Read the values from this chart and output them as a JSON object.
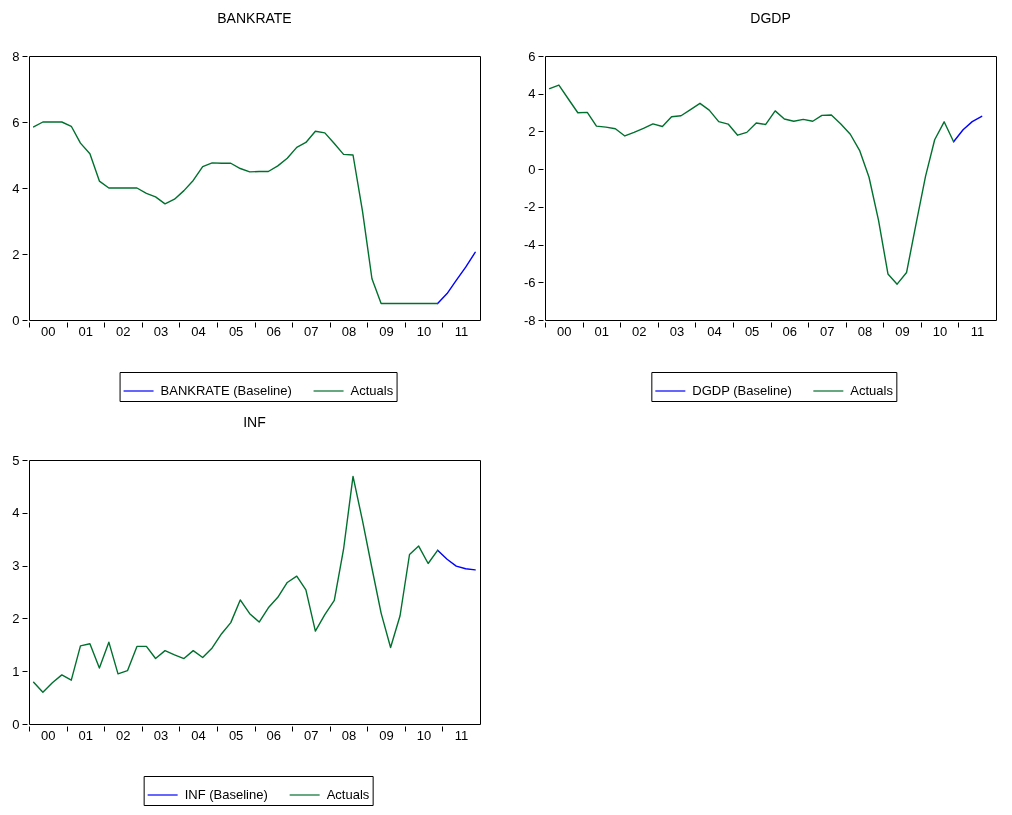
{
  "chart_data": [
    {
      "type": "line",
      "title": "BANKRATE",
      "legend": "bottom",
      "xlim": [
        "2000",
        "2012"
      ],
      "ylim": [
        0,
        8
      ],
      "yticks": [
        0,
        2,
        4,
        6,
        8
      ],
      "xticks": [
        {
          "value": "2000",
          "label": null
        },
        {
          "value": "2000-07-01",
          "label": "00"
        },
        {
          "value": "2001",
          "label": null
        },
        {
          "value": "2001-07-01",
          "label": "01"
        },
        {
          "value": "2002",
          "label": null
        },
        {
          "value": "2002-07-01",
          "label": "02"
        },
        {
          "value": "2003",
          "label": null
        },
        {
          "value": "2003-07-01",
          "label": "03"
        },
        {
          "value": "2004",
          "label": null
        },
        {
          "value": "2004-07-01",
          "label": "04"
        },
        {
          "value": "2005",
          "label": null
        },
        {
          "value": "2005-07-01",
          "label": "05"
        },
        {
          "value": "2006",
          "label": null
        },
        {
          "value": "2006-07-01",
          "label": "06"
        },
        {
          "value": "2007",
          "label": null
        },
        {
          "value": "2007-07-01",
          "label": "07"
        },
        {
          "value": "2008",
          "label": null
        },
        {
          "value": "2008-07-01",
          "label": "08"
        },
        {
          "value": "2009",
          "label": null
        },
        {
          "value": "2009-07-01",
          "label": "09"
        },
        {
          "value": "2010",
          "label": null
        },
        {
          "value": "2010-07-01",
          "label": "10"
        },
        {
          "value": "2011",
          "label": null
        },
        {
          "value": "2011-07-01",
          "label": "11"
        }
      ],
      "series": [
        {
          "name": "BANKRATE (Baseline)",
          "color": "#0000ff",
          "x": [
            "2010-11-15",
            "2011-02-15",
            "2011-05-15",
            "2011-08-15",
            "2011-11-15"
          ],
          "values": [
            0.5,
            0.8,
            1.2,
            1.6,
            2.05
          ]
        },
        {
          "name": "Actuals",
          "color": "#00702e",
          "x": [
            "2000-02-15",
            "2000-05-15",
            "2000-08-15",
            "2000-11-15",
            "2001-02-15",
            "2001-05-15",
            "2001-08-15",
            "2001-11-15",
            "2002-02-15",
            "2002-05-15",
            "2002-08-15",
            "2002-11-15",
            "2003-02-15",
            "2003-05-15",
            "2003-08-15",
            "2003-11-15",
            "2004-02-15",
            "2004-05-15",
            "2004-08-15",
            "2004-11-15",
            "2005-02-15",
            "2005-05-15",
            "2005-08-15",
            "2005-11-15",
            "2006-02-15",
            "2006-05-15",
            "2006-08-15",
            "2006-11-15",
            "2007-02-15",
            "2007-05-15",
            "2007-08-15",
            "2007-11-15",
            "2008-02-15",
            "2008-05-15",
            "2008-08-15",
            "2008-11-15",
            "2009-02-15",
            "2009-05-15",
            "2009-08-15",
            "2009-11-15",
            "2010-02-15",
            "2010-05-15",
            "2010-08-15",
            "2010-11-15"
          ],
          "values": [
            5.85,
            6.0,
            6.0,
            6.0,
            5.87,
            5.36,
            5.04,
            4.21,
            4.0,
            4.0,
            4.0,
            4.0,
            3.84,
            3.73,
            3.52,
            3.66,
            3.92,
            4.23,
            4.65,
            4.76,
            4.75,
            4.75,
            4.59,
            4.49,
            4.5,
            4.5,
            4.67,
            4.9,
            5.23,
            5.38,
            5.72,
            5.67,
            5.35,
            5.02,
            5.0,
            3.3,
            1.25,
            0.5,
            0.5,
            0.5,
            0.5,
            0.5,
            0.5,
            0.5
          ]
        }
      ]
    },
    {
      "type": "line",
      "title": "DGDP",
      "legend": "bottom",
      "xlim": [
        "2000",
        "2012"
      ],
      "ylim": [
        -8,
        6
      ],
      "yticks": [
        -8,
        -6,
        -4,
        -2,
        0,
        2,
        4,
        6
      ],
      "xticks": [
        {
          "value": "2000",
          "label": null
        },
        {
          "value": "2000-07-01",
          "label": "00"
        },
        {
          "value": "2001",
          "label": null
        },
        {
          "value": "2001-07-01",
          "label": "01"
        },
        {
          "value": "2002",
          "label": null
        },
        {
          "value": "2002-07-01",
          "label": "02"
        },
        {
          "value": "2003",
          "label": null
        },
        {
          "value": "2003-07-01",
          "label": "03"
        },
        {
          "value": "2004",
          "label": null
        },
        {
          "value": "2004-07-01",
          "label": "04"
        },
        {
          "value": "2005",
          "label": null
        },
        {
          "value": "2005-07-01",
          "label": "05"
        },
        {
          "value": "2006",
          "label": null
        },
        {
          "value": "2006-07-01",
          "label": "06"
        },
        {
          "value": "2007",
          "label": null
        },
        {
          "value": "2007-07-01",
          "label": "07"
        },
        {
          "value": "2008",
          "label": null
        },
        {
          "value": "2008-07-01",
          "label": "08"
        },
        {
          "value": "2009",
          "label": null
        },
        {
          "value": "2009-07-01",
          "label": "09"
        },
        {
          "value": "2010",
          "label": null
        },
        {
          "value": "2010-07-01",
          "label": "10"
        },
        {
          "value": "2011",
          "label": null
        },
        {
          "value": "2011-07-01",
          "label": "11"
        }
      ],
      "series": [
        {
          "name": "DGDP (Baseline)",
          "color": "#0000ff",
          "x": [
            "2010-11-15",
            "2011-02-15",
            "2011-05-15",
            "2011-08-15"
          ],
          "values": [
            1.45,
            2.09,
            2.52,
            2.8
          ]
        },
        {
          "name": "Actuals",
          "color": "#00702e",
          "x": [
            "2000-02-15",
            "2000-05-15",
            "2000-08-15",
            "2000-11-15",
            "2001-02-15",
            "2001-05-15",
            "2001-08-15",
            "2001-11-15",
            "2002-02-15",
            "2002-05-15",
            "2002-08-15",
            "2002-11-15",
            "2003-02-15",
            "2003-05-15",
            "2003-08-15",
            "2003-11-15",
            "2004-02-15",
            "2004-05-15",
            "2004-08-15",
            "2004-11-15",
            "2005-02-15",
            "2005-05-15",
            "2005-08-15",
            "2005-11-15",
            "2006-02-15",
            "2006-05-15",
            "2006-08-15",
            "2006-11-15",
            "2007-02-15",
            "2007-05-15",
            "2007-08-15",
            "2007-11-15",
            "2008-02-15",
            "2008-05-15",
            "2008-08-15",
            "2008-11-15",
            "2009-02-15",
            "2009-05-15",
            "2009-08-15",
            "2009-11-15",
            "2010-02-15",
            "2010-05-15",
            "2010-08-15",
            "2010-11-15"
          ],
          "values": [
            4.27,
            4.46,
            3.72,
            2.99,
            3.01,
            2.28,
            2.23,
            2.14,
            1.76,
            1.95,
            2.16,
            2.4,
            2.26,
            2.78,
            2.83,
            3.16,
            3.49,
            3.13,
            2.52,
            2.39,
            1.8,
            1.95,
            2.45,
            2.37,
            3.09,
            2.66,
            2.54,
            2.64,
            2.54,
            2.85,
            2.87,
            2.39,
            1.85,
            1.0,
            -0.43,
            -2.7,
            -5.56,
            -6.1,
            -5.48,
            -2.9,
            -0.38,
            1.56,
            2.51,
            1.45
          ]
        }
      ]
    },
    {
      "type": "line",
      "title": "INF",
      "legend": "bottom",
      "xlim": [
        "2000",
        "2012"
      ],
      "ylim": [
        0,
        5
      ],
      "yticks": [
        0,
        1,
        2,
        3,
        4,
        5
      ],
      "xticks": [
        {
          "value": "2000",
          "label": null
        },
        {
          "value": "2000-07-01",
          "label": "00"
        },
        {
          "value": "2001",
          "label": null
        },
        {
          "value": "2001-07-01",
          "label": "01"
        },
        {
          "value": "2002",
          "label": null
        },
        {
          "value": "2002-07-01",
          "label": "02"
        },
        {
          "value": "2003",
          "label": null
        },
        {
          "value": "2003-07-01",
          "label": "03"
        },
        {
          "value": "2004",
          "label": null
        },
        {
          "value": "2004-07-01",
          "label": "04"
        },
        {
          "value": "2005",
          "label": null
        },
        {
          "value": "2005-07-01",
          "label": "05"
        },
        {
          "value": "2006",
          "label": null
        },
        {
          "value": "2006-07-01",
          "label": "06"
        },
        {
          "value": "2007",
          "label": null
        },
        {
          "value": "2007-07-01",
          "label": "07"
        },
        {
          "value": "2008",
          "label": null
        },
        {
          "value": "2008-07-01",
          "label": "08"
        },
        {
          "value": "2009",
          "label": null
        },
        {
          "value": "2009-07-01",
          "label": "09"
        },
        {
          "value": "2010",
          "label": null
        },
        {
          "value": "2010-07-01",
          "label": "10"
        },
        {
          "value": "2011",
          "label": null
        },
        {
          "value": "2011-07-01",
          "label": "11"
        }
      ],
      "series": [
        {
          "name": "INF (Baseline)",
          "color": "#0000ff",
          "x": [
            "2010-11-15",
            "2011-02-15",
            "2011-05-15",
            "2011-08-15",
            "2011-11-15"
          ],
          "values": [
            3.29,
            3.12,
            2.99,
            2.94,
            2.92
          ]
        },
        {
          "name": "Actuals",
          "color": "#00702e",
          "x": [
            "2000-02-15",
            "2000-05-15",
            "2000-08-15",
            "2000-11-15",
            "2001-02-15",
            "2001-05-15",
            "2001-08-15",
            "2001-11-15",
            "2002-02-15",
            "2002-05-15",
            "2002-08-15",
            "2002-11-15",
            "2003-02-15",
            "2003-05-15",
            "2003-08-15",
            "2003-11-15",
            "2004-02-15",
            "2004-05-15",
            "2004-08-15",
            "2004-11-15",
            "2005-02-15",
            "2005-05-15",
            "2005-08-15",
            "2005-11-15",
            "2006-02-15",
            "2006-05-15",
            "2006-08-15",
            "2006-11-15",
            "2007-02-15",
            "2007-05-15",
            "2007-08-15",
            "2007-11-15",
            "2008-02-15",
            "2008-05-15",
            "2008-08-15",
            "2008-11-15",
            "2009-02-15",
            "2009-05-15",
            "2009-08-15",
            "2009-11-15",
            "2010-02-15",
            "2010-05-15",
            "2010-08-15",
            "2010-11-15"
          ],
          "values": [
            0.79,
            0.6,
            0.78,
            0.93,
            0.83,
            1.48,
            1.52,
            1.06,
            1.55,
            0.95,
            1.01,
            1.47,
            1.47,
            1.24,
            1.39,
            1.31,
            1.24,
            1.39,
            1.26,
            1.44,
            1.71,
            1.92,
            2.35,
            2.09,
            1.93,
            2.2,
            2.4,
            2.68,
            2.8,
            2.54,
            1.76,
            2.07,
            2.34,
            3.31,
            4.69,
            3.85,
            2.95,
            2.1,
            1.45,
            2.05,
            3.21,
            3.37,
            3.04,
            3.29
          ]
        }
      ]
    }
  ]
}
